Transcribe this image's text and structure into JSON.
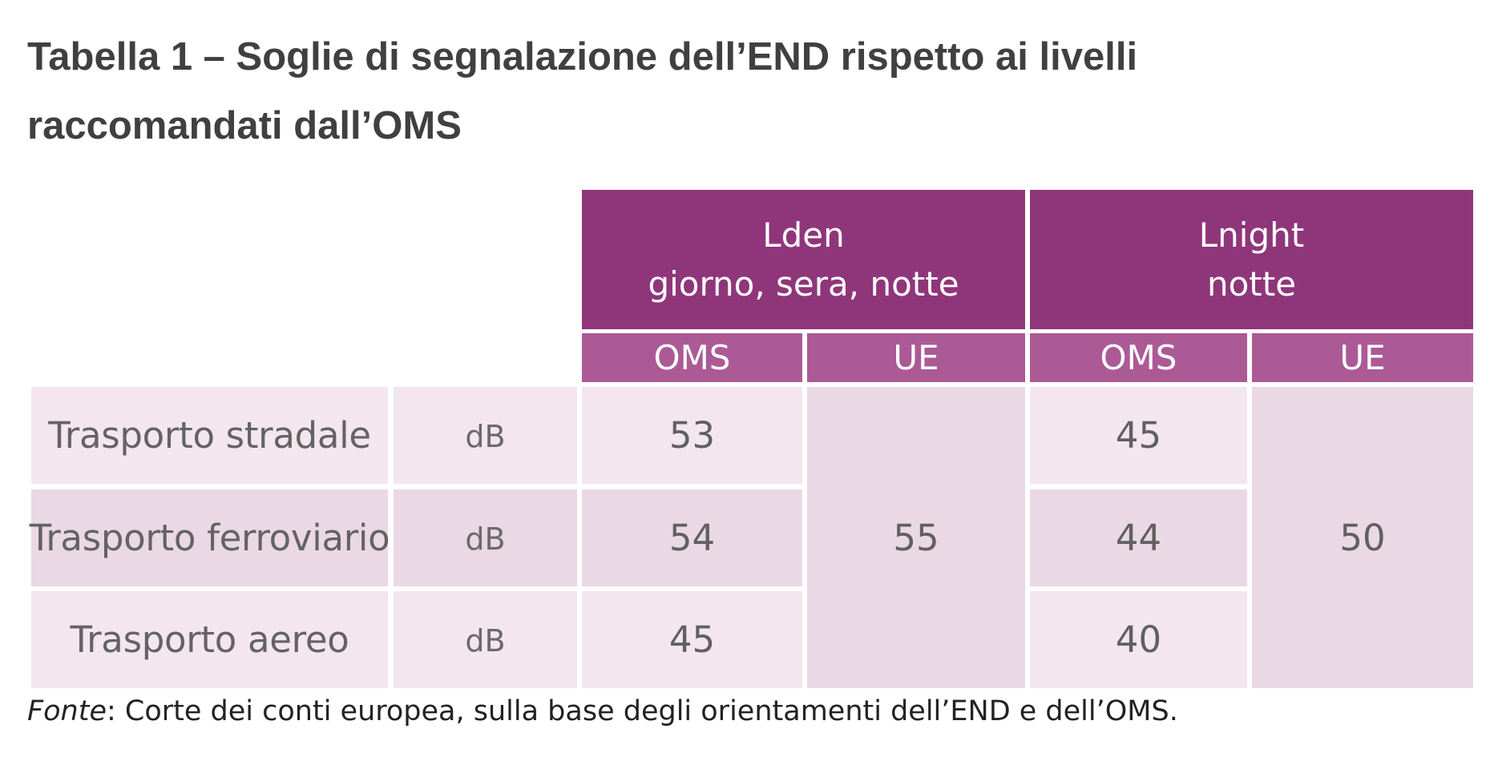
{
  "title": {
    "line1": "Tabella 1 – Soglie di segnalazione dell’END rispetto ai livelli",
    "line2": "raccomandati dall’OMS"
  },
  "table": {
    "groups": [
      {
        "name": "Lden",
        "sub": "giorno, sera, notte"
      },
      {
        "name": "Lnight",
        "sub": "notte"
      }
    ],
    "subheaders": [
      "OMS",
      "UE",
      "OMS",
      "UE"
    ],
    "rows": [
      {
        "label": "Trasporto stradale",
        "unit": "dB",
        "lden_oms": "53",
        "lnight_oms": "45"
      },
      {
        "label": "Trasporto ferroviario",
        "unit": "dB",
        "lden_oms": "54",
        "lnight_oms": "44"
      },
      {
        "label": "Trasporto aereo",
        "unit": "dB",
        "lden_oms": "45",
        "lnight_oms": "40"
      }
    ],
    "lden_ue": "55",
    "lnight_ue": "50"
  },
  "source": {
    "label": "Fonte",
    "text": ": Corte dei conti europea, sulla base degli orientamenti dell’END e dell’OMS."
  },
  "colors": {
    "header": "#8f367a",
    "subheader": "#ab5a95",
    "row_light": "#f3e6ef",
    "row_dark": "#ead8e4"
  }
}
